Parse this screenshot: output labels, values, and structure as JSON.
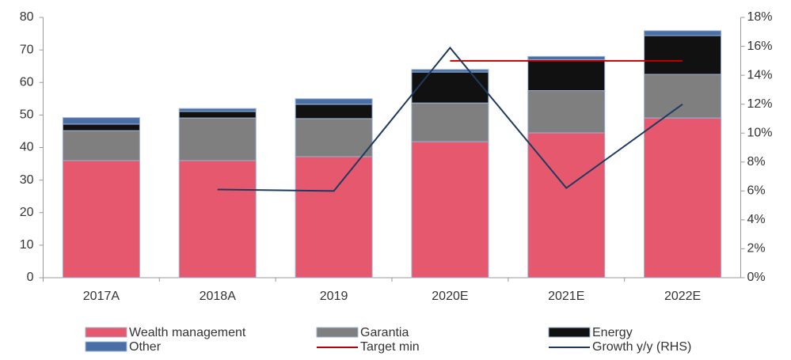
{
  "chart_data": {
    "type": "bar",
    "stacked": true,
    "categories": [
      "2017A",
      "2018A",
      "2019",
      "2020E",
      "2021E",
      "2022E"
    ],
    "series": [
      {
        "name": "Wealth management",
        "type": "bar",
        "color": "#e5586e",
        "values": [
          36,
          36,
          37.2,
          41.8,
          44.5,
          49.1
        ]
      },
      {
        "name": "Garantia",
        "type": "bar",
        "color": "#7f7f7f",
        "values": [
          9.2,
          13.1,
          11.7,
          11.9,
          13,
          13.4
        ]
      },
      {
        "name": "Energy",
        "type": "bar",
        "color": "#111111",
        "values": [
          2,
          2,
          4.4,
          9.5,
          9.5,
          11.9
        ]
      },
      {
        "name": "Other",
        "type": "bar",
        "color": "#4a6fa5",
        "values": [
          2,
          0.9,
          1.7,
          0.8,
          1,
          1.5
        ]
      },
      {
        "name": "Target min",
        "type": "line",
        "axis": "y2",
        "color": "#c00000",
        "values": [
          null,
          null,
          null,
          15,
          15,
          15
        ]
      },
      {
        "name": "Growth y/y (RHS)",
        "type": "line",
        "axis": "y2",
        "color": "#1f3a5f",
        "values": [
          null,
          6.1,
          6,
          15.9,
          6.2,
          12
        ]
      }
    ],
    "ylim": [
      0,
      80
    ],
    "yticks": [
      0,
      10,
      20,
      30,
      40,
      50,
      60,
      70,
      80
    ],
    "y2lim": [
      0,
      18
    ],
    "y2ticks": [
      {
        "value": 0,
        "label": "0%"
      },
      {
        "value": 2,
        "label": "2%"
      },
      {
        "value": 4,
        "label": "4%"
      },
      {
        "value": 6,
        "label": "6%"
      },
      {
        "value": 8,
        "label": "8%"
      },
      {
        "value": 10,
        "label": "10%"
      },
      {
        "value": 12,
        "label": "12%"
      },
      {
        "value": 14,
        "label": "14%"
      },
      {
        "value": 16,
        "label": "16%"
      },
      {
        "value": 18,
        "label": "18%"
      }
    ],
    "legend": "bottom"
  }
}
